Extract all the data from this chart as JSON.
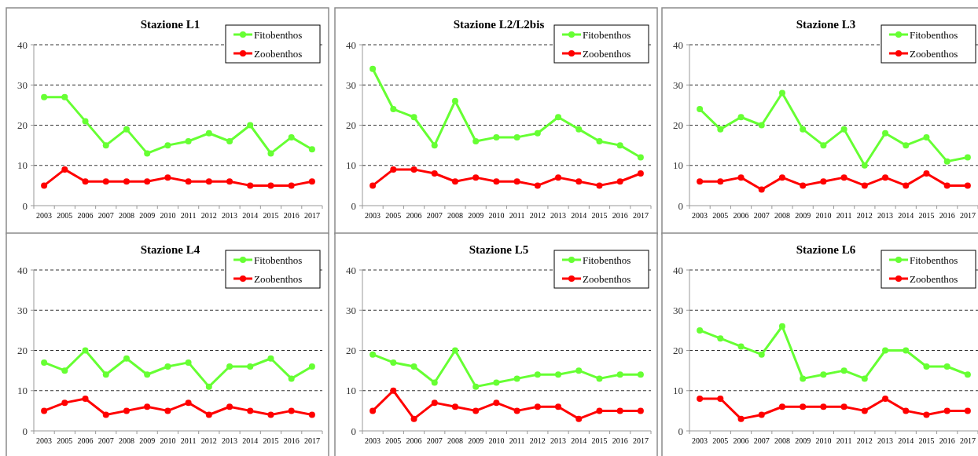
{
  "chart_data": [
    {
      "type": "line",
      "title": "Stazione L1",
      "categories": [
        "2003",
        "2005",
        "2006",
        "2007",
        "2008",
        "2009",
        "2010",
        "2011",
        "2012",
        "2013",
        "2014",
        "2015",
        "2016",
        "2017"
      ],
      "ylim": [
        0,
        40
      ],
      "yticks": [
        0,
        10,
        20,
        30,
        40
      ],
      "grid": "y",
      "legend": "top right",
      "marker": "circle",
      "series": [
        {
          "name": "Fitobenthos",
          "color": "#66ff33",
          "values": [
            27,
            27,
            21,
            15,
            19,
            13,
            15,
            16,
            18,
            16,
            20,
            13,
            17,
            14
          ]
        },
        {
          "name": "Zoobenthos",
          "color": "#ff0000",
          "values": [
            5,
            9,
            6,
            6,
            6,
            6,
            7,
            6,
            6,
            6,
            5,
            5,
            5,
            6
          ]
        }
      ]
    },
    {
      "type": "line",
      "title": "Stazione L2/L2bis",
      "categories": [
        "2003",
        "2005",
        "2006",
        "2007",
        "2008",
        "2009",
        "2010",
        "2011",
        "2012",
        "2013",
        "2014",
        "2015",
        "2016",
        "2017"
      ],
      "ylim": [
        0,
        40
      ],
      "yticks": [
        0,
        10,
        20,
        30,
        40
      ],
      "grid": "y",
      "legend": "top right",
      "marker": "circle",
      "series": [
        {
          "name": "Fitobenthos",
          "color": "#66ff33",
          "values": [
            34,
            24,
            22,
            15,
            26,
            16,
            17,
            17,
            18,
            22,
            19,
            16,
            15,
            12
          ]
        },
        {
          "name": "Zoobenthos",
          "color": "#ff0000",
          "values": [
            5,
            9,
            9,
            8,
            6,
            7,
            6,
            6,
            5,
            7,
            6,
            5,
            6,
            8
          ]
        }
      ]
    },
    {
      "type": "line",
      "title": "Stazione L3",
      "categories": [
        "2003",
        "2005",
        "2006",
        "2007",
        "2008",
        "2009",
        "2010",
        "2011",
        "2012",
        "2013",
        "2014",
        "2015",
        "2016",
        "2017"
      ],
      "ylim": [
        0,
        40
      ],
      "yticks": [
        0,
        10,
        20,
        30,
        40
      ],
      "grid": "y",
      "legend": "top right",
      "marker": "circle",
      "series": [
        {
          "name": "Fitobenthos",
          "color": "#66ff33",
          "values": [
            24,
            19,
            22,
            20,
            28,
            19,
            15,
            19,
            10,
            18,
            15,
            17,
            11,
            12
          ]
        },
        {
          "name": "Zoobenthos",
          "color": "#ff0000",
          "values": [
            6,
            6,
            7,
            4,
            7,
            5,
            6,
            7,
            5,
            7,
            5,
            8,
            5,
            5
          ]
        }
      ]
    },
    {
      "type": "line",
      "title": "Stazione L4",
      "categories": [
        "2003",
        "2005",
        "2006",
        "2007",
        "2008",
        "2009",
        "2010",
        "2011",
        "2012",
        "2013",
        "2014",
        "2015",
        "2016",
        "2017"
      ],
      "ylim": [
        0,
        40
      ],
      "yticks": [
        0,
        10,
        20,
        30,
        40
      ],
      "grid": "y",
      "legend": "top right",
      "marker": "circle",
      "series": [
        {
          "name": "Fitobenthos",
          "color": "#66ff33",
          "values": [
            17,
            15,
            20,
            14,
            18,
            14,
            16,
            17,
            11,
            16,
            16,
            18,
            13,
            16
          ]
        },
        {
          "name": "Zoobenthos",
          "color": "#ff0000",
          "values": [
            5,
            7,
            8,
            4,
            5,
            6,
            5,
            7,
            4,
            6,
            5,
            4,
            5,
            4
          ]
        }
      ]
    },
    {
      "type": "line",
      "title": "Stazione L5",
      "categories": [
        "2003",
        "2005",
        "2006",
        "2007",
        "2008",
        "2009",
        "2010",
        "2011",
        "2012",
        "2013",
        "2014",
        "2015",
        "2016",
        "2017"
      ],
      "ylim": [
        0,
        40
      ],
      "yticks": [
        0,
        10,
        20,
        30,
        40
      ],
      "grid": "y",
      "legend": "top right",
      "marker": "circle",
      "series": [
        {
          "name": "Fitobenthos",
          "color": "#66ff33",
          "values": [
            19,
            17,
            16,
            12,
            20,
            11,
            12,
            13,
            14,
            14,
            15,
            13,
            14,
            14
          ]
        },
        {
          "name": "Zoobenthos",
          "color": "#ff0000",
          "values": [
            5,
            10,
            3,
            7,
            6,
            5,
            7,
            5,
            6,
            6,
            3,
            5,
            5,
            5
          ]
        }
      ]
    },
    {
      "type": "line",
      "title": "Stazione L6",
      "categories": [
        "2003",
        "2005",
        "2006",
        "2007",
        "2008",
        "2009",
        "2010",
        "2011",
        "2012",
        "2013",
        "2014",
        "2015",
        "2016",
        "2017"
      ],
      "ylim": [
        0,
        40
      ],
      "yticks": [
        0,
        10,
        20,
        30,
        40
      ],
      "grid": "y",
      "legend": "top right",
      "marker": "circle",
      "series": [
        {
          "name": "Fitobenthos",
          "color": "#66ff33",
          "values": [
            25,
            23,
            21,
            19,
            26,
            13,
            14,
            15,
            13,
            20,
            20,
            16,
            16,
            14
          ]
        },
        {
          "name": "Zoobenthos",
          "color": "#ff0000",
          "values": [
            8,
            8,
            3,
            4,
            6,
            6,
            6,
            6,
            5,
            8,
            5,
            4,
            5,
            5
          ]
        }
      ]
    }
  ]
}
